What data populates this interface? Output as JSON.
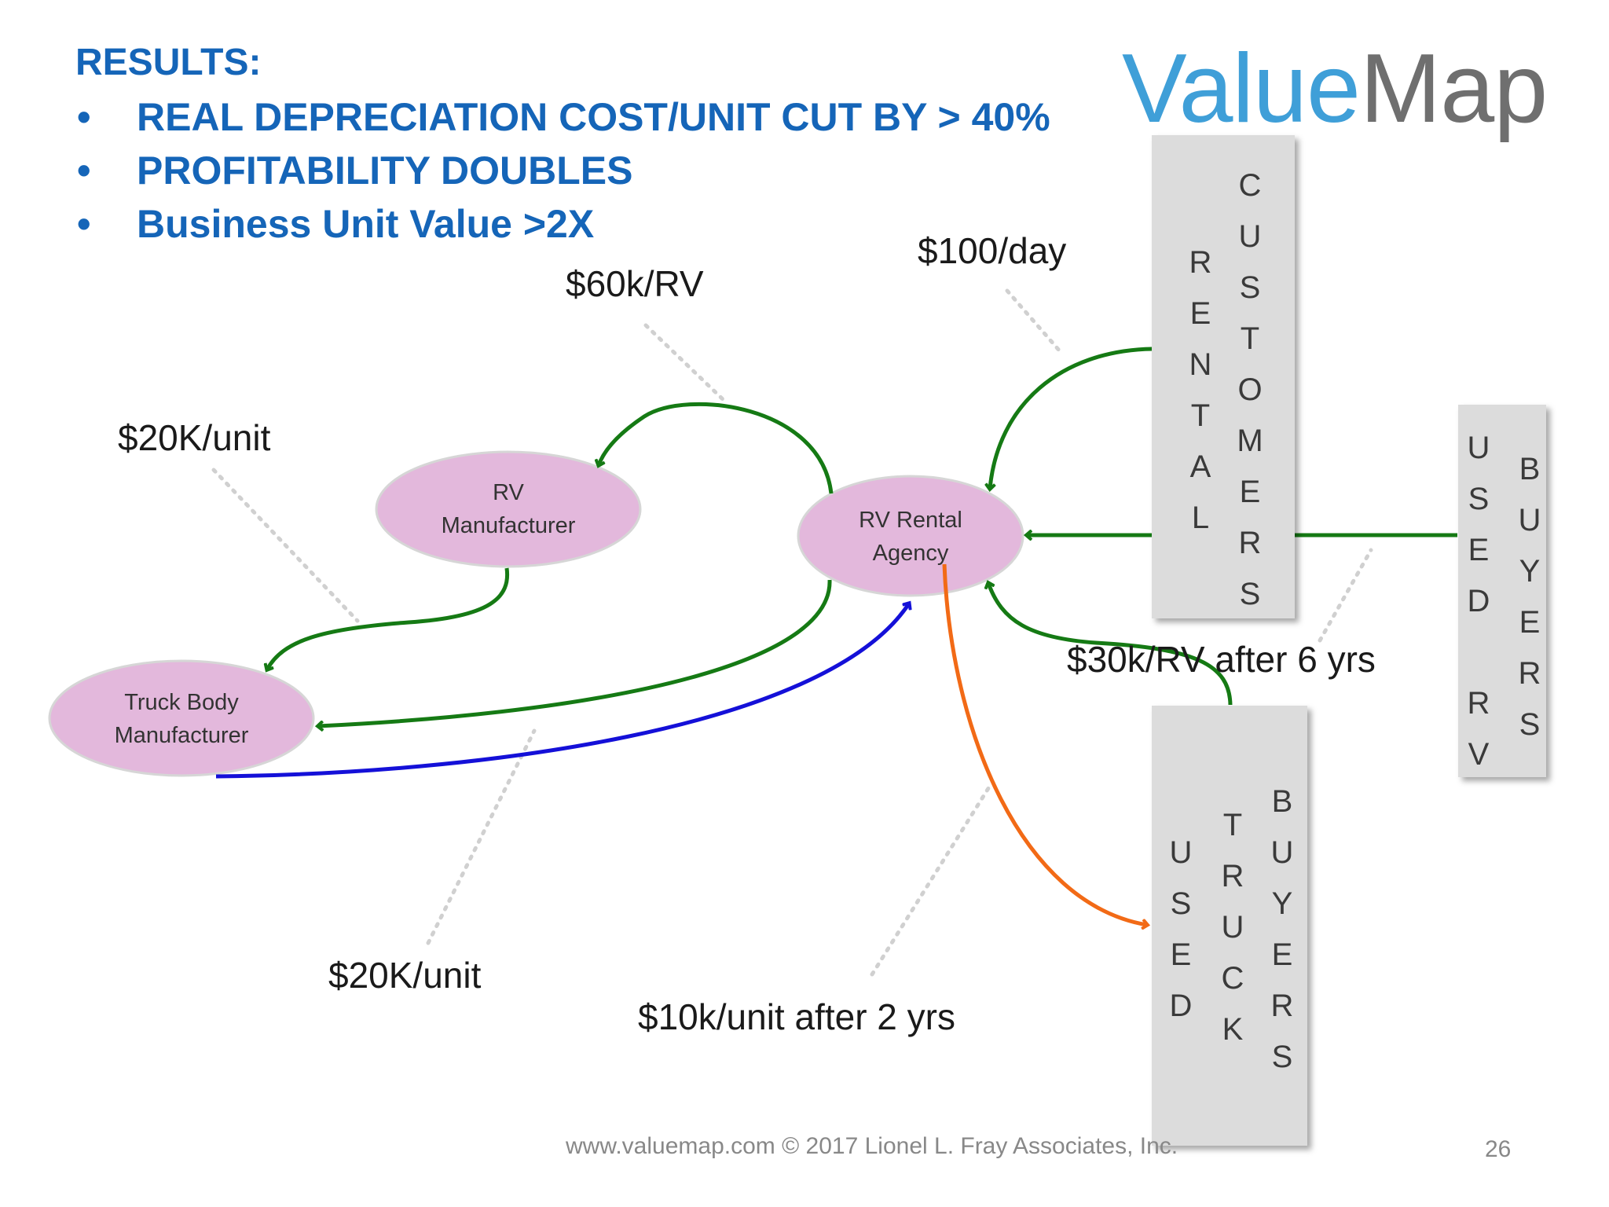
{
  "header": {
    "results_heading": "RESULTS:",
    "bullets": [
      "REAL DEPRECIATION COST/UNIT CUT BY > 40%",
      "PROFITABILITY DOUBLES",
      "Business Unit Value >2X"
    ],
    "bullet_char": "•"
  },
  "logo": {
    "part1": "Value",
    "part2": "Map"
  },
  "nodes": {
    "rv_manufacturer": [
      "RV",
      "Manufacturer"
    ],
    "rv_rental_agency": [
      "RV Rental",
      "Agency"
    ],
    "truck_body_manufacturer": [
      "Truck Body",
      "Manufacturer"
    ]
  },
  "boxes": {
    "rental_customers": {
      "col1": "RENTAL",
      "col2": "CUSTOMERS"
    },
    "used_rv_buyers": {
      "col1": "USED RV",
      "col2": "BUYERS"
    },
    "used_truck_buyers": {
      "col1": "USED",
      "col2": "TRUCK",
      "col3": "BUYERS"
    }
  },
  "edge_labels": {
    "per_day": "$100/day",
    "per_rv": "$60k/RV",
    "per_unit_top": "$20K/unit",
    "per_unit_bottom": "$20K/unit",
    "after_6_yrs": "$30k/RV after 6 yrs",
    "after_2_yrs": "$10k/unit after 2 yrs"
  },
  "footer": {
    "text": "www.valuemap.com © 2017 Lionel L. Fray Associates, Inc.",
    "page_number": "26"
  },
  "colors": {
    "heading_blue": "#1565b8",
    "node_fill": "#e3b8dc",
    "box_fill": "#dcdcdc",
    "arrow_green": "#157a14",
    "arrow_blue": "#1410d8",
    "arrow_orange": "#f26a16"
  }
}
